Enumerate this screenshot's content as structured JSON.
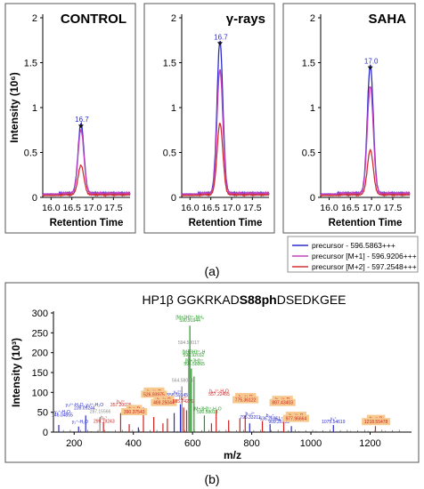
{
  "figure": {
    "panel_a_label": "(a)",
    "panel_b_label": "(b)"
  },
  "colors": {
    "precursor": "#2b2bcc",
    "m1": "#c040c0",
    "m2": "#d03030",
    "spectrum_green": "#1f9a1f",
    "spectrum_red": "#d02020",
    "spectrum_blue": "#2a2acc",
    "spectrum_gray": "#8a8a8a",
    "highlight_box": "#f6c98e"
  },
  "chart_data": [
    {
      "type": "line",
      "title": "CONTROL",
      "xlabel": "Retention Time",
      "ylabel": "Intensity (10⁶)",
      "xlim": [
        15.8,
        17.9
      ],
      "ylim": [
        0,
        2
      ],
      "xticks": [
        "16.0",
        "16.5",
        "17.0",
        "17.5"
      ],
      "yticks": [
        "0",
        "0.5",
        "1",
        "1.5",
        "2"
      ],
      "peak_label": "16.7",
      "peak_rt": 16.72,
      "series": [
        {
          "name": "precursor - 596.5863+++",
          "apex": 0.78
        },
        {
          "name": "precursor [M+1] - 596.9206+++",
          "apex": 0.71
        },
        {
          "name": "precursor [M+2] - 597.2548+++",
          "apex": 0.33
        }
      ]
    },
    {
      "type": "line",
      "title": "γ-rays",
      "xlabel": "Retention Time",
      "ylabel": "",
      "xlim": [
        15.8,
        17.9
      ],
      "ylim": [
        0,
        2
      ],
      "xticks": [
        "16.0",
        "16.5",
        "17.0",
        "17.5"
      ],
      "yticks": [
        "0",
        "0.5",
        "1",
        "1.5",
        "2"
      ],
      "peak_label": "16.7",
      "peak_rt": 16.72,
      "series": [
        {
          "name": "precursor - 596.5863+++",
          "apex": 1.7
        },
        {
          "name": "precursor [M+1] - 596.9206+++",
          "apex": 1.38
        },
        {
          "name": "precursor [M+2] - 597.2548+++",
          "apex": 0.8
        }
      ]
    },
    {
      "type": "line",
      "title": "SAHA",
      "xlabel": "Retention Time",
      "ylabel": "",
      "xlim": [
        15.8,
        17.9
      ],
      "ylim": [
        0,
        2
      ],
      "xticks": [
        "16.0",
        "16.5",
        "17.0",
        "17.5"
      ],
      "yticks": [
        "0",
        "0.5",
        "1",
        "1.5",
        "2"
      ],
      "peak_label": "17.0",
      "peak_rt": 16.97,
      "series": [
        {
          "name": "precursor - 596.5863+++",
          "apex": 1.43
        },
        {
          "name": "precursor [M+1] - 596.9206+++",
          "apex": 1.2
        },
        {
          "name": "precursor [M+2] - 597.2548+++",
          "apex": 0.5
        }
      ]
    },
    {
      "type": "bar",
      "title_prefix": "HP1β GGKRKAD",
      "title_bold": "S88ph",
      "title_suffix": "DSEDKGEE",
      "xlabel": "m/z",
      "ylabel": "Intensity (10³)",
      "xlim": [
        130,
        1340
      ],
      "ylim": [
        0,
        300
      ],
      "xticks": [
        "200",
        "400",
        "600",
        "800",
        "1000",
        "1200"
      ],
      "yticks": [
        "0",
        "50",
        "100",
        "150",
        "200",
        "250",
        "300"
      ],
      "peaks": [
        {
          "mz": 148,
          "intensity": 18,
          "color": "blue"
        },
        {
          "mz": 215,
          "intensity": 14,
          "color": "blue"
        },
        {
          "mz": 239,
          "intensity": 42,
          "color": "blue"
        },
        {
          "mz": 287,
          "intensity": 38,
          "color": "gray"
        },
        {
          "mz": 299,
          "intensity": 25,
          "color": "red"
        },
        {
          "mz": 357,
          "intensity": 48,
          "color": "red"
        },
        {
          "mz": 386,
          "intensity": 20,
          "color": "orange"
        },
        {
          "mz": 417,
          "intensity": 12,
          "color": "blue"
        },
        {
          "mz": 434,
          "intensity": 62,
          "color": "orange"
        },
        {
          "mz": 469,
          "intensity": 38,
          "color": "red"
        },
        {
          "mz": 500,
          "intensity": 22,
          "color": "red"
        },
        {
          "mz": 515,
          "intensity": 34,
          "color": "orange"
        },
        {
          "mz": 538,
          "intensity": 48,
          "color": "blue"
        },
        {
          "mz": 559,
          "intensity": 70,
          "color": "blue"
        },
        {
          "mz": 564,
          "intensity": 115,
          "color": "gray"
        },
        {
          "mz": 570,
          "intensity": 62,
          "color": "red"
        },
        {
          "mz": 580,
          "intensity": 55,
          "color": "orange"
        },
        {
          "mz": 587,
          "intensity": 208,
          "color": "gray"
        },
        {
          "mz": 591,
          "intensity": 268,
          "color": "green"
        },
        {
          "mz": 596,
          "intensity": 160,
          "color": "green"
        },
        {
          "mz": 605,
          "intensity": 140,
          "color": "green"
        },
        {
          "mz": 640,
          "intensity": 42,
          "color": "green"
        },
        {
          "mz": 664,
          "intensity": 22,
          "color": "red"
        },
        {
          "mz": 680,
          "intensity": 55,
          "color": "red"
        },
        {
          "mz": 722,
          "intensity": 30,
          "color": "red"
        },
        {
          "mz": 760,
          "intensity": 35,
          "color": "red"
        },
        {
          "mz": 778,
          "intensity": 42,
          "color": "orange"
        },
        {
          "mz": 793,
          "intensity": 22,
          "color": "blue"
        },
        {
          "mz": 836,
          "intensity": 28,
          "color": "red"
        },
        {
          "mz": 862,
          "intensity": 20,
          "color": "blue"
        },
        {
          "mz": 908,
          "intensity": 40,
          "color": "orange"
        },
        {
          "mz": 934,
          "intensity": 15,
          "color": "blue"
        },
        {
          "mz": 1076,
          "intensity": 18,
          "color": "blue"
        },
        {
          "mz": 1218,
          "intensity": 15,
          "color": "orange"
        }
      ],
      "annotations": [
        {
          "text": "[M+3H]³⁺-NH₃",
          "mz": 591,
          "intensity": 286,
          "color": "green",
          "box": false
        },
        {
          "text": "590.91944",
          "mz": 591,
          "intensity": 278,
          "color": "green",
          "box": false
        },
        {
          "text": "594.58017",
          "mz": 587,
          "intensity": 222,
          "color": "gray",
          "box": false
        },
        {
          "text": "[M+3H]³⁺-H",
          "mz": 604,
          "intensity": 198,
          "color": "green",
          "box": false
        },
        {
          "text": "596.92032",
          "mz": 604,
          "intensity": 190,
          "color": "green",
          "box": false
        },
        {
          "text": "[M+3H]³⁺",
          "mz": 606,
          "intensity": 176,
          "color": "green",
          "box": false
        },
        {
          "text": "596.58065",
          "mz": 606,
          "intensity": 168,
          "color": "green",
          "box": false
        },
        {
          "text": "564.58034",
          "mz": 566,
          "intensity": 126,
          "color": "gray",
          "box": false
        },
        {
          "text": "b₁₁²⁺-P",
          "mz": 470,
          "intensity": 99,
          "color": "red",
          "box": true
        },
        {
          "text": "526.93975",
          "mz": 470,
          "intensity": 91,
          "color": "red",
          "box": true
        },
        {
          "text": "y₅²⁺",
          "mz": 549,
          "intensity": 97,
          "color": "blue",
          "box": false
        },
        {
          "text": "558.59145",
          "mz": 549,
          "intensity": 89,
          "color": "blue",
          "box": false
        },
        {
          "text": "b₁₁²⁺-H₂O",
          "mz": 690,
          "intensity": 100,
          "color": "red",
          "box": false
        },
        {
          "text": "557.22455",
          "mz": 690,
          "intensity": 92,
          "color": "red",
          "box": false
        },
        {
          "text": "b₆²⁺",
          "mz": 358,
          "intensity": 73,
          "color": "red",
          "box": false
        },
        {
          "text": "357.20026",
          "mz": 358,
          "intensity": 65,
          "color": "red",
          "box": false
        },
        {
          "text": "b₁₁²⁺-P",
          "mz": 503,
          "intensity": 78,
          "color": "red",
          "box": true
        },
        {
          "text": "469.25044",
          "mz": 503,
          "intensity": 70,
          "color": "red",
          "box": true
        },
        {
          "text": "b₅²⁺",
          "mz": 568,
          "intensity": 82,
          "color": "red",
          "box": false
        },
        {
          "text": "585.74271",
          "mz": 568,
          "intensity": 74,
          "color": "red",
          "box": false
        },
        {
          "text": "b₁₄²⁺-P",
          "mz": 779,
          "intensity": 85,
          "color": "red",
          "box": true
        },
        {
          "text": "775.36122",
          "mz": 779,
          "intensity": 77,
          "color": "red",
          "box": true
        },
        {
          "text": "b₁₂²⁺-P",
          "mz": 904,
          "intensity": 78,
          "color": "red",
          "box": true
        },
        {
          "text": "887.43403",
          "mz": 904,
          "intensity": 70,
          "color": "red",
          "box": true
        },
        {
          "text": "y₃²⁺-H₂O, y₂²⁺-H₂O",
          "mz": 235,
          "intensity": 65,
          "color": "blue",
          "box": false
        },
        {
          "text": "239.09244",
          "mz": 235,
          "intensity": 57,
          "color": "blue",
          "box": false
        },
        {
          "text": "287.15566",
          "mz": 288,
          "intensity": 48,
          "color": "gray",
          "box": false
        },
        {
          "text": "y₁⁺-H₂O",
          "mz": 160,
          "intensity": 47,
          "color": "blue",
          "box": false
        },
        {
          "text": "146.04855",
          "mz": 160,
          "intensity": 39,
          "color": "blue",
          "box": false
        },
        {
          "text": "[M+3H]³⁺-H₂O",
          "mz": 650,
          "intensity": 55,
          "color": "green",
          "box": false
        },
        {
          "text": "590.58013",
          "mz": 650,
          "intensity": 47,
          "color": "green",
          "box": false
        },
        {
          "text": "b₈⁺-P",
          "mz": 403,
          "intensity": 55,
          "color": "red",
          "box": true
        },
        {
          "text": "390.37543",
          "mz": 403,
          "intensity": 47,
          "color": "red",
          "box": true
        },
        {
          "text": "b₃⁺",
          "mz": 301,
          "intensity": 32,
          "color": "red",
          "box": false
        },
        {
          "text": "299.19243",
          "mz": 301,
          "intensity": 24,
          "color": "red",
          "box": false
        },
        {
          "text": "y₂⁺-H₂O",
          "mz": 220,
          "intensity": 22,
          "color": "blue",
          "box": false
        },
        {
          "text": "b₁₃²⁺",
          "mz": 795,
          "intensity": 42,
          "color": "blue",
          "box": false
        },
        {
          "text": "795.33211",
          "mz": 795,
          "intensity": 34,
          "color": "blue",
          "box": false
        },
        {
          "text": "b₁₄⁺",
          "mz": 862,
          "intensity": 38,
          "color": "blue",
          "box": false
        },
        {
          "text": "636.26951",
          "mz": 862,
          "intensity": 30,
          "color": "blue",
          "box": false
        },
        {
          "text": "y₁₃⁺",
          "mz": 892,
          "intensity": 30,
          "color": "blue",
          "box": false
        },
        {
          "text": "909.26793",
          "mz": 892,
          "intensity": 22,
          "color": "blue",
          "box": false
        },
        {
          "text": "b₁₅²⁺-P",
          "mz": 950,
          "intensity": 38,
          "color": "red",
          "box": true
        },
        {
          "text": "977.96664",
          "mz": 950,
          "intensity": 30,
          "color": "red",
          "box": true
        },
        {
          "text": "y₇⁺",
          "mz": 1076,
          "intensity": 30,
          "color": "blue",
          "box": false
        },
        {
          "text": "1075.54619",
          "mz": 1076,
          "intensity": 22,
          "color": "blue",
          "box": false
        },
        {
          "text": "b₁₀⁺-P",
          "mz": 1220,
          "intensity": 30,
          "color": "red",
          "box": true
        },
        {
          "text": "1218.55478",
          "mz": 1220,
          "intensity": 22,
          "color": "red",
          "box": true
        }
      ]
    }
  ]
}
